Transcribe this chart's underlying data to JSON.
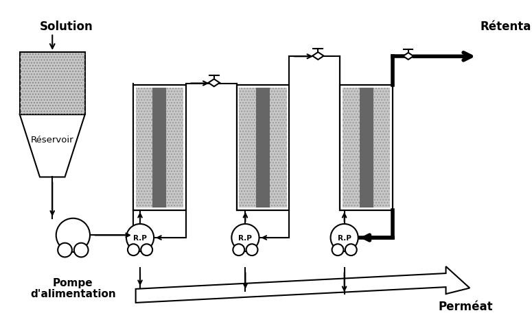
{
  "bg_color": "#ffffff",
  "line_color": "#000000",
  "text_solution": "Solution",
  "text_reservoir": "Réservoir",
  "text_pump_label": "Pompe",
  "text_pump_label2": "d'alimentation",
  "text_rp": "R.P",
  "text_retentate": "Rétenta",
  "text_permeate": "Perméat",
  "lw_thin": 1.5,
  "lw_thick": 4.0
}
